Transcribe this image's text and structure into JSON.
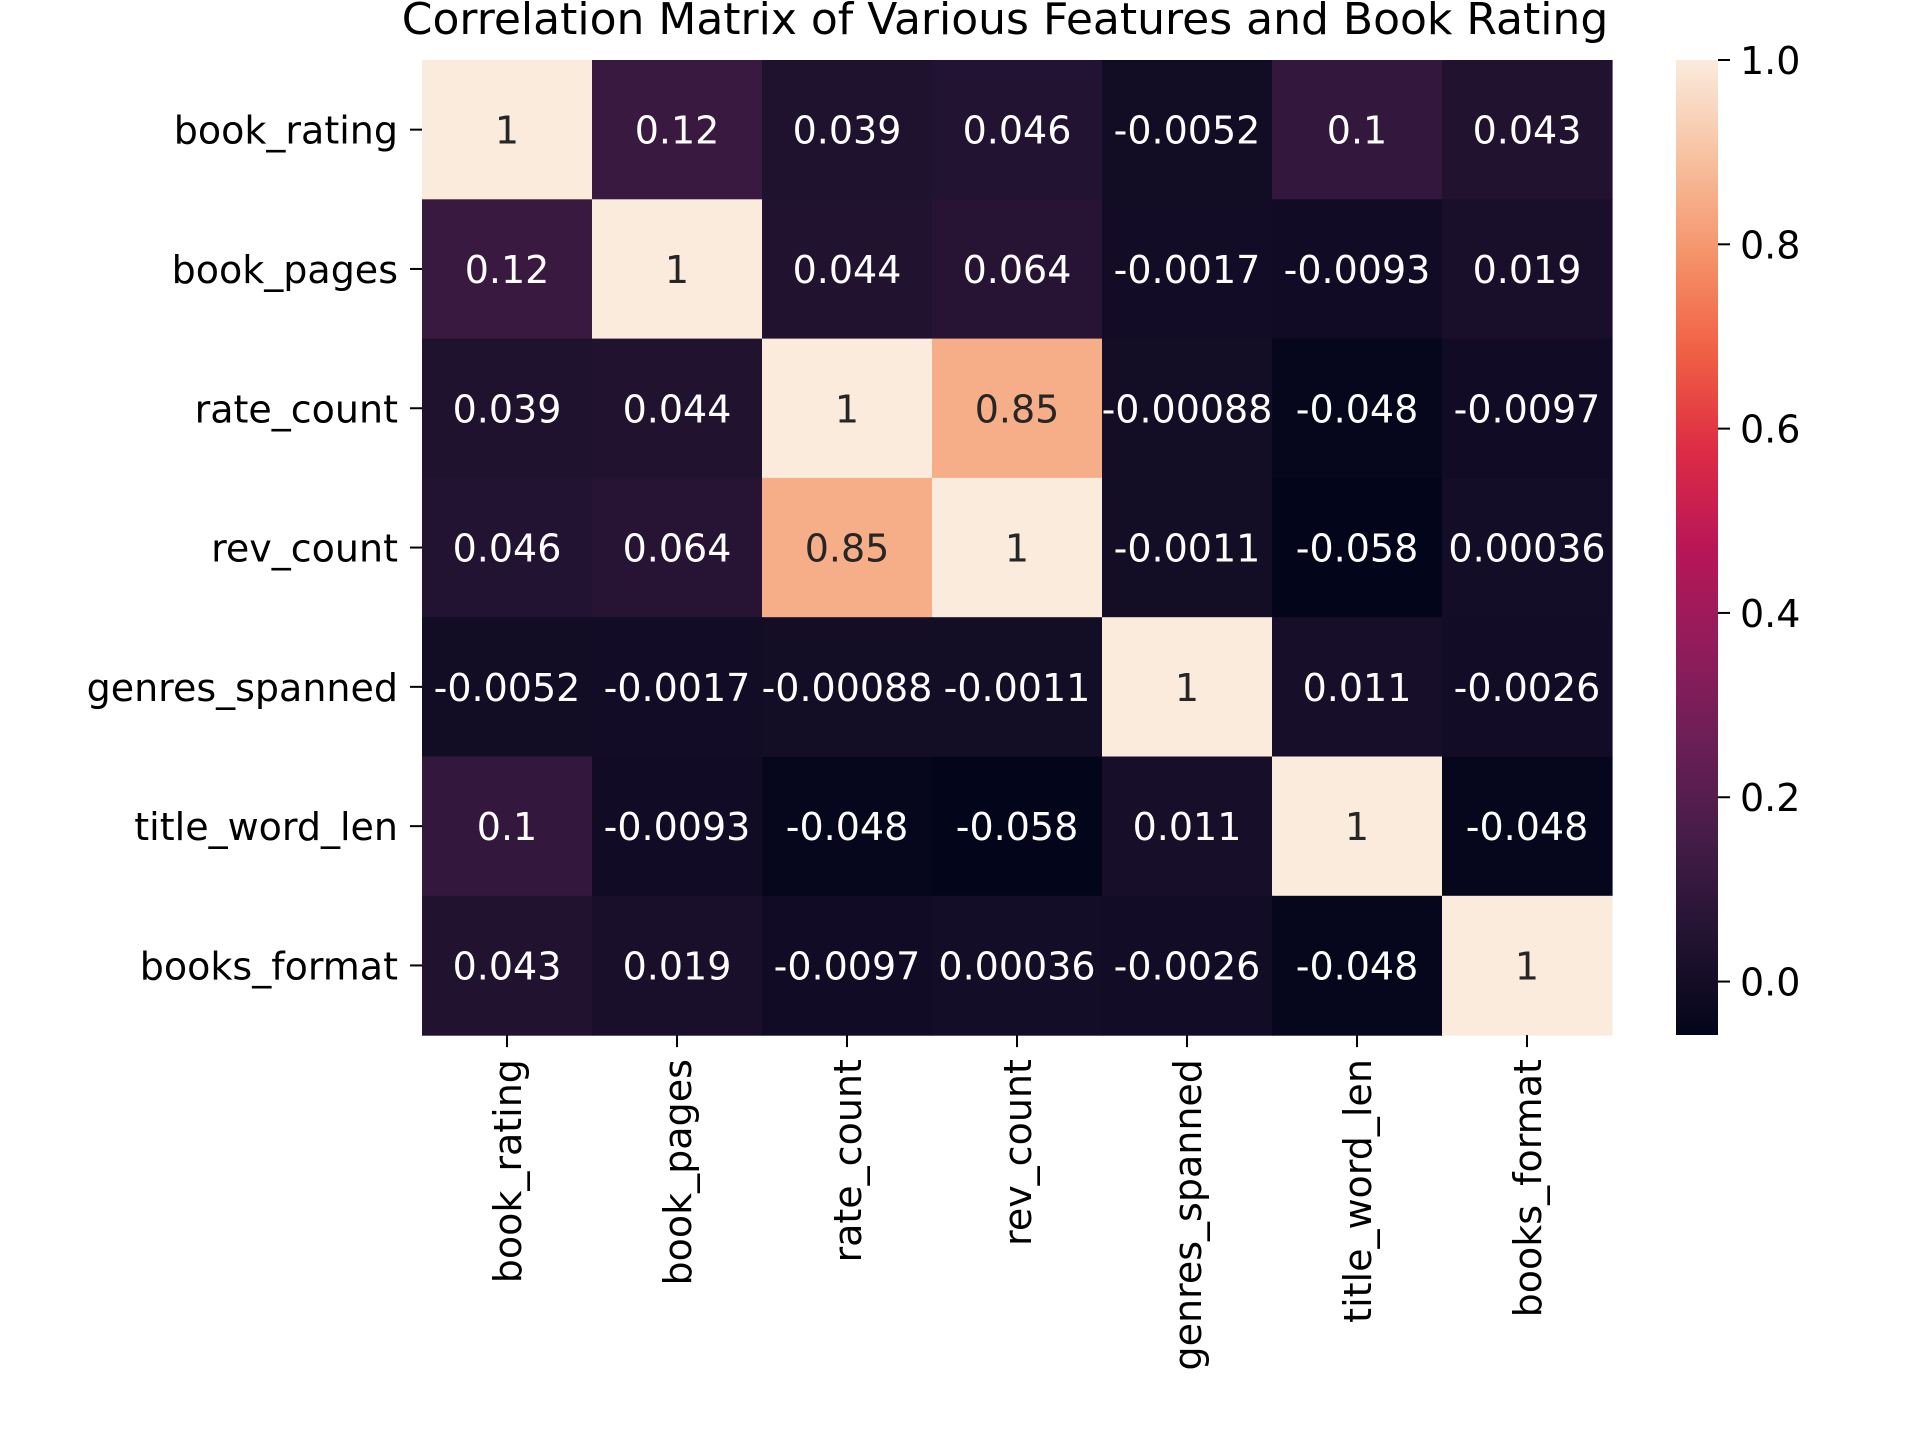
{
  "chart_data": {
    "type": "heatmap",
    "title": "Correlation Matrix of Various Features and Book Rating",
    "rows": [
      "book_rating",
      "book_pages",
      "rate_count",
      "rev_count",
      "genres_spanned",
      "title_word_len",
      "books_format"
    ],
    "columns": [
      "book_rating",
      "book_pages",
      "rate_count",
      "rev_count",
      "genres_spanned",
      "title_word_len",
      "books_format"
    ],
    "values": [
      [
        1,
        0.12,
        0.039,
        0.046,
        -0.0052,
        0.1,
        0.043
      ],
      [
        0.12,
        1,
        0.044,
        0.064,
        -0.0017,
        -0.0093,
        0.019
      ],
      [
        0.039,
        0.044,
        1,
        0.85,
        -0.00088,
        -0.048,
        -0.0097
      ],
      [
        0.046,
        0.064,
        0.85,
        1,
        -0.0011,
        -0.058,
        0.00036
      ],
      [
        -0.0052,
        -0.0017,
        -0.00088,
        -0.0011,
        1,
        0.011,
        -0.0026
      ],
      [
        0.1,
        -0.0093,
        -0.048,
        -0.058,
        0.011,
        1,
        -0.048
      ],
      [
        0.043,
        0.019,
        -0.0097,
        0.00036,
        -0.0026,
        -0.048,
        1
      ]
    ],
    "annotations": [
      [
        "1",
        "0.12",
        "0.039",
        "0.046",
        "-0.0052",
        "0.1",
        "0.043"
      ],
      [
        "0.12",
        "1",
        "0.044",
        "0.064",
        "-0.0017",
        "-0.0093",
        "0.019"
      ],
      [
        "0.039",
        "0.044",
        "1",
        "0.85",
        "-0.00088",
        "-0.048",
        "-0.0097"
      ],
      [
        "0.046",
        "0.064",
        "0.85",
        "1",
        "-0.0011",
        "-0.058",
        "0.00036"
      ],
      [
        "-0.0052",
        "-0.0017",
        "-0.00088",
        "-0.0011",
        "1",
        "0.011",
        "-0.0026"
      ],
      [
        "0.1",
        "-0.0093",
        "-0.048",
        "-0.058",
        "0.011",
        "1",
        "-0.048"
      ],
      [
        "0.043",
        "0.019",
        "-0.0097",
        "0.00036",
        "-0.0026",
        "-0.048",
        "1"
      ]
    ],
    "color_range": [
      -0.058,
      1.0
    ],
    "colormap": "rocket",
    "colorbar_ticks": [
      0.0,
      0.2,
      0.4,
      0.6,
      0.8,
      1.0
    ],
    "colorbar_tick_labels": [
      "0.0",
      "0.2",
      "0.4",
      "0.6",
      "0.8",
      "1.0"
    ],
    "xlabel": "",
    "ylabel": "",
    "grid": false
  }
}
